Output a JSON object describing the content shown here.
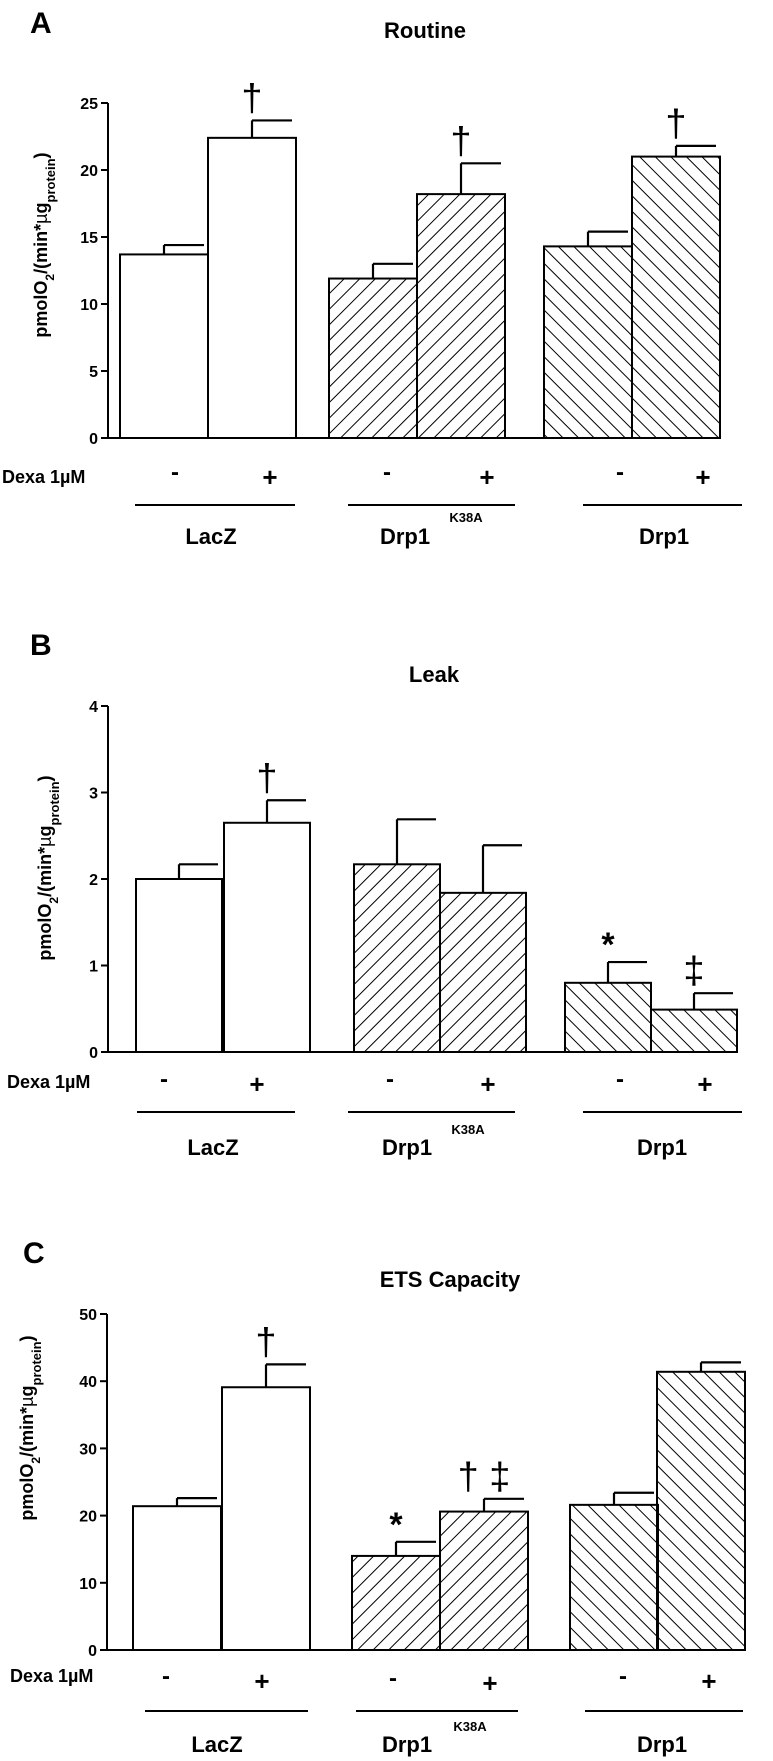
{
  "figure": {
    "panels": [
      {
        "letter": "A",
        "title": "Routine",
        "ylabel": "pmolO2/(min*µgprotein)",
        "ylabel_main": "pmolO",
        "ylabel_sub": "2",
        "ylabel_mid": "/(min*",
        "ylabel_mu": "µ",
        "ylabel_g": "g",
        "ylabel_protein": "protein",
        "ylabel_close": ")",
        "treatment_label": "Dexa 1µM",
        "dexa_minus": "-",
        "dexa_plus": "+",
        "groups": [
          "LacZ",
          "Drp1",
          "Drp1"
        ],
        "group_superscripts": [
          "",
          "K38A",
          ""
        ]
      },
      {
        "letter": "B",
        "title": "Leak",
        "ylabel": "pmolO2/(min*µgprotein)",
        "ylabel_main": "pmolO",
        "ylabel_sub": "2",
        "ylabel_mid": "/(min*",
        "ylabel_mu": "µ",
        "ylabel_g": "g",
        "ylabel_protein": "protein",
        "ylabel_close": ")",
        "treatment_label": "Dexa 1µM",
        "dexa_minus": "-",
        "dexa_plus": "+",
        "groups": [
          "LacZ",
          "Drp1",
          "Drp1"
        ],
        "group_superscripts": [
          "",
          "K38A",
          ""
        ]
      },
      {
        "letter": "C",
        "title": "ETS Capacity",
        "ylabel": "pmolO2/(min*µgprotein)",
        "ylabel_main": "pmolO",
        "ylabel_sub": "2",
        "ylabel_mid": "/(min*",
        "ylabel_mu": "µ",
        "ylabel_g": "g",
        "ylabel_protein": "protein",
        "ylabel_close": ")",
        "treatment_label": "Dexa 1µM",
        "dexa_minus": "-",
        "dexa_plus": "+",
        "groups": [
          "LacZ",
          "Drp1",
          "Drp1"
        ],
        "group_superscripts": [
          "",
          "K38A",
          ""
        ]
      }
    ]
  },
  "chart_data": [
    {
      "type": "bar",
      "panel": "A",
      "title": "Routine",
      "ylabel": "pmolO2/(min*µgprotein)",
      "ylim": [
        0,
        25
      ],
      "yticks": [
        0,
        5,
        10,
        15,
        20,
        25
      ],
      "categories": [
        "LacZ -",
        "LacZ +",
        "Drp1 K38A -",
        "Drp1 K38A +",
        "Drp1 -",
        "Drp1 +"
      ],
      "values": [
        13.7,
        22.4,
        11.9,
        18.2,
        14.3,
        21.0
      ],
      "errors": [
        0.7,
        1.3,
        1.1,
        2.3,
        1.1,
        0.8
      ],
      "patterns": [
        "none",
        "none",
        "forward",
        "forward",
        "back",
        "back"
      ],
      "annotations": [
        "",
        "†",
        "",
        "†",
        "",
        "†"
      ]
    },
    {
      "type": "bar",
      "panel": "B",
      "title": "Leak",
      "ylabel": "pmolO2/(min*µgprotein)",
      "ylim": [
        0,
        4
      ],
      "yticks": [
        0,
        1,
        2,
        3,
        4
      ],
      "categories": [
        "LacZ -",
        "LacZ +",
        "Drp1 K38A -",
        "Drp1 K38A +",
        "Drp1 -",
        "Drp1 +"
      ],
      "values": [
        2.0,
        2.65,
        2.17,
        1.84,
        0.8,
        0.49
      ],
      "errors": [
        0.17,
        0.26,
        0.52,
        0.55,
        0.24,
        0.19
      ],
      "patterns": [
        "none",
        "none",
        "forward",
        "forward",
        "back",
        "back"
      ],
      "annotations": [
        "",
        "†",
        "",
        "",
        "*",
        "‡"
      ]
    },
    {
      "type": "bar",
      "panel": "C",
      "title": "ETS Capacity",
      "ylabel": "pmolO2/(min*µgprotein)",
      "ylim": [
        0,
        50
      ],
      "yticks": [
        0,
        10,
        20,
        30,
        40,
        50
      ],
      "categories": [
        "LacZ -",
        "LacZ +",
        "Drp1 K38A -",
        "Drp1 K38A +",
        "Drp1 -",
        "Drp1 +"
      ],
      "values": [
        21.4,
        39.1,
        14.0,
        20.6,
        21.6,
        41.4
      ],
      "errors": [
        1.2,
        3.4,
        2.1,
        1.9,
        1.8,
        1.4
      ],
      "patterns": [
        "none",
        "none",
        "forward",
        "forward",
        "back",
        "back"
      ],
      "annotations": [
        "",
        "†",
        "*",
        "† ‡",
        "",
        ""
      ]
    }
  ]
}
